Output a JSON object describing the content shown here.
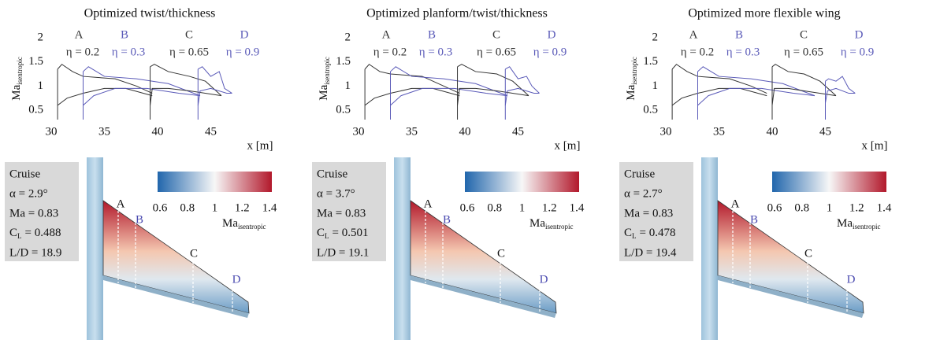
{
  "panels": [
    {
      "title": "Optimized twist/thickness",
      "plot": {
        "ylabel": "Ma",
        "ylabel_sub": "isentropic",
        "xlabel": "x [m]",
        "xlim": [
          30,
          48.5
        ],
        "ylim": [
          0.5,
          2
        ],
        "xticks": [
          30,
          35,
          40,
          45
        ],
        "yticks": [
          0.5,
          1,
          1.5,
          2
        ],
        "sections": [
          {
            "letter": "A",
            "eta": "η = 0.2",
            "color": "#333333",
            "upper": [
              [
                30.6,
                1.35
              ],
              [
                31,
                1.45
              ],
              [
                32,
                1.3
              ],
              [
                33,
                1.2
              ],
              [
                36,
                1.15
              ],
              [
                38,
                1.0
              ],
              [
                39.5,
                0.85
              ]
            ],
            "lower": [
              [
                30.6,
                0.6
              ],
              [
                31.5,
                0.75
              ],
              [
                33,
                0.85
              ],
              [
                35,
                0.95
              ],
              [
                37,
                0.95
              ],
              [
                39.5,
                0.8
              ]
            ]
          },
          {
            "letter": "B",
            "eta": "η = 0.3",
            "color": "#5a5ab8",
            "upper": [
              [
                33,
                1.3
              ],
              [
                33.5,
                1.4
              ],
              [
                35,
                1.2
              ],
              [
                38,
                1.15
              ],
              [
                41,
                1.05
              ],
              [
                44,
                0.8
              ]
            ],
            "lower": [
              [
                33,
                0.6
              ],
              [
                34,
                0.8
              ],
              [
                36,
                0.95
              ],
              [
                39,
                0.95
              ],
              [
                42,
                0.85
              ],
              [
                44,
                0.8
              ]
            ]
          },
          {
            "letter": "C",
            "eta": "η = 0.65",
            "color": "#333333",
            "upper": [
              [
                39.3,
                1.4
              ],
              [
                39.7,
                1.45
              ],
              [
                41,
                1.3
              ],
              [
                43,
                1.2
              ],
              [
                44.5,
                1.1
              ],
              [
                46,
                0.8
              ]
            ],
            "lower": [
              [
                39.3,
                0.6
              ],
              [
                39.5,
                0.95
              ],
              [
                41,
                0.95
              ],
              [
                43,
                0.9
              ],
              [
                46,
                0.8
              ]
            ]
          },
          {
            "letter": "D",
            "eta": "η = 0.9",
            "color": "#5a5ab8",
            "upper": [
              [
                43.8,
                1.35
              ],
              [
                44.2,
                1.4
              ],
              [
                45,
                1.2
              ],
              [
                45.8,
                1.3
              ],
              [
                46.3,
                0.95
              ],
              [
                47,
                0.85
              ]
            ],
            "lower": [
              [
                43.8,
                0.6
              ],
              [
                44,
                0.9
              ],
              [
                45,
                0.95
              ],
              [
                46.5,
                0.85
              ],
              [
                47,
                0.85
              ]
            ]
          }
        ]
      },
      "cruise": {
        "heading": "Cruise",
        "alpha": "α = 2.9°",
        "mach": "Ma = 0.83",
        "cl_symbol": "C",
        "cl_sub": "L",
        "cl_value": "= 0.488",
        "ld": "L/D = 18.9"
      },
      "colorbar": {
        "ticks": [
          0.6,
          0.8,
          1,
          1.2,
          1.4
        ],
        "label": "Ma",
        "label_sub": "isentropic"
      },
      "wing_labels": [
        "A",
        "B",
        "C",
        "D"
      ]
    },
    {
      "title": "Optimized planform/twist/thickness",
      "plot": {
        "ylabel": "Ma",
        "ylabel_sub": "isentropic",
        "xlabel": "x [m]",
        "xlim": [
          30,
          48.5
        ],
        "ylim": [
          0.5,
          2
        ],
        "xticks": [
          30,
          35,
          40,
          45
        ],
        "yticks": [
          0.5,
          1,
          1.5,
          2
        ],
        "sections": [
          {
            "letter": "A",
            "eta": "η = 0.2",
            "color": "#333333",
            "upper": [
              [
                30.6,
                1.35
              ],
              [
                31,
                1.45
              ],
              [
                32,
                1.3
              ],
              [
                33,
                1.25
              ],
              [
                36,
                1.2
              ],
              [
                38,
                1.0
              ],
              [
                39.5,
                0.85
              ]
            ],
            "lower": [
              [
                30.6,
                0.6
              ],
              [
                31.5,
                0.75
              ],
              [
                33,
                0.85
              ],
              [
                35,
                0.95
              ],
              [
                37,
                0.95
              ],
              [
                39.5,
                0.8
              ]
            ]
          },
          {
            "letter": "B",
            "eta": "η = 0.3",
            "color": "#5a5ab8",
            "upper": [
              [
                33,
                1.3
              ],
              [
                33.5,
                1.4
              ],
              [
                35,
                1.2
              ],
              [
                38,
                1.15
              ],
              [
                41,
                1.05
              ],
              [
                44,
                0.8
              ]
            ],
            "lower": [
              [
                33,
                0.6
              ],
              [
                34,
                0.8
              ],
              [
                36,
                0.95
              ],
              [
                39,
                0.95
              ],
              [
                42,
                0.85
              ],
              [
                44,
                0.8
              ]
            ]
          },
          {
            "letter": "C",
            "eta": "η = 0.65",
            "color": "#333333",
            "upper": [
              [
                39.3,
                1.4
              ],
              [
                39.7,
                1.45
              ],
              [
                41,
                1.3
              ],
              [
                43,
                1.25
              ],
              [
                44.5,
                1.1
              ],
              [
                46,
                0.8
              ]
            ],
            "lower": [
              [
                39.3,
                0.6
              ],
              [
                39.5,
                0.95
              ],
              [
                41,
                0.95
              ],
              [
                43,
                0.9
              ],
              [
                46,
                0.8
              ]
            ]
          },
          {
            "letter": "D",
            "eta": "η = 0.9",
            "color": "#5a5ab8",
            "upper": [
              [
                43.8,
                1.35
              ],
              [
                44.2,
                1.4
              ],
              [
                45,
                1.15
              ],
              [
                45.8,
                1.2
              ],
              [
                46.3,
                1.0
              ],
              [
                47,
                0.85
              ]
            ],
            "lower": [
              [
                43.8,
                0.6
              ],
              [
                44,
                0.9
              ],
              [
                45,
                0.95
              ],
              [
                46.5,
                0.85
              ],
              [
                47,
                0.85
              ]
            ]
          }
        ]
      },
      "cruise": {
        "heading": "Cruise",
        "alpha": "α = 3.7°",
        "mach": "Ma = 0.83",
        "cl_symbol": "C",
        "cl_sub": "L",
        "cl_value": "= 0.501",
        "ld": "L/D = 19.1"
      },
      "colorbar": {
        "ticks": [
          0.6,
          0.8,
          1,
          1.2,
          1.4
        ],
        "label": "Ma",
        "label_sub": "isentropic"
      },
      "wing_labels": [
        "A",
        "B",
        "C",
        "D"
      ]
    },
    {
      "title": "Optimized more flexible wing",
      "plot": {
        "ylabel": "Ma",
        "ylabel_sub": "isentropic",
        "xlabel": "x [m]",
        "xlim": [
          30,
          48.5
        ],
        "ylim": [
          0.5,
          2
        ],
        "xticks": [
          30,
          35,
          40,
          45
        ],
        "yticks": [
          0.5,
          1,
          1.5,
          2
        ],
        "sections": [
          {
            "letter": "A",
            "eta": "η = 0.2",
            "color": "#333333",
            "upper": [
              [
                30.6,
                1.35
              ],
              [
                31,
                1.45
              ],
              [
                32,
                1.3
              ],
              [
                33,
                1.2
              ],
              [
                36,
                1.15
              ],
              [
                38,
                1.0
              ],
              [
                39.5,
                0.85
              ]
            ],
            "lower": [
              [
                30.6,
                0.6
              ],
              [
                31.5,
                0.75
              ],
              [
                33,
                0.85
              ],
              [
                35,
                0.95
              ],
              [
                37,
                0.95
              ],
              [
                39.5,
                0.8
              ]
            ]
          },
          {
            "letter": "B",
            "eta": "η = 0.3",
            "color": "#5a5ab8",
            "upper": [
              [
                33,
                1.3
              ],
              [
                33.5,
                1.4
              ],
              [
                35,
                1.2
              ],
              [
                38,
                1.15
              ],
              [
                41,
                1.05
              ],
              [
                44,
                0.8
              ]
            ],
            "lower": [
              [
                33,
                0.6
              ],
              [
                34,
                0.8
              ],
              [
                36,
                0.95
              ],
              [
                39,
                0.95
              ],
              [
                42,
                0.85
              ],
              [
                44,
                0.8
              ]
            ]
          },
          {
            "letter": "C",
            "eta": "η = 0.65",
            "color": "#333333",
            "upper": [
              [
                40,
                1.4
              ],
              [
                40.3,
                1.45
              ],
              [
                41.5,
                1.3
              ],
              [
                43,
                1.25
              ],
              [
                44.5,
                1.1
              ],
              [
                46,
                0.8
              ]
            ],
            "lower": [
              [
                40,
                0.6
              ],
              [
                40.2,
                0.95
              ],
              [
                41.5,
                0.95
              ],
              [
                43,
                0.9
              ],
              [
                46,
                0.8
              ]
            ]
          },
          {
            "letter": "D",
            "eta": "η = 0.9",
            "color": "#5a5ab8",
            "upper": [
              [
                45,
                1.1
              ],
              [
                45.3,
                1.15
              ],
              [
                46,
                1.1
              ],
              [
                46.6,
                1.2
              ],
              [
                47.2,
                0.95
              ],
              [
                47.8,
                0.85
              ]
            ],
            "lower": [
              [
                45,
                0.65
              ],
              [
                45.2,
                0.9
              ],
              [
                46,
                0.95
              ],
              [
                47.2,
                0.85
              ],
              [
                47.8,
                0.85
              ]
            ]
          }
        ]
      },
      "cruise": {
        "heading": "Cruise",
        "alpha": "α = 2.7°",
        "mach": "Ma = 0.83",
        "cl_symbol": "C",
        "cl_sub": "L",
        "cl_value": "= 0.478",
        "ld": "L/D = 19.4"
      },
      "colorbar": {
        "ticks": [
          0.6,
          0.8,
          1,
          1.2,
          1.4
        ],
        "label": "Ma",
        "label_sub": "isentropic"
      },
      "wing_labels": [
        "A",
        "B",
        "C",
        "D"
      ]
    }
  ]
}
